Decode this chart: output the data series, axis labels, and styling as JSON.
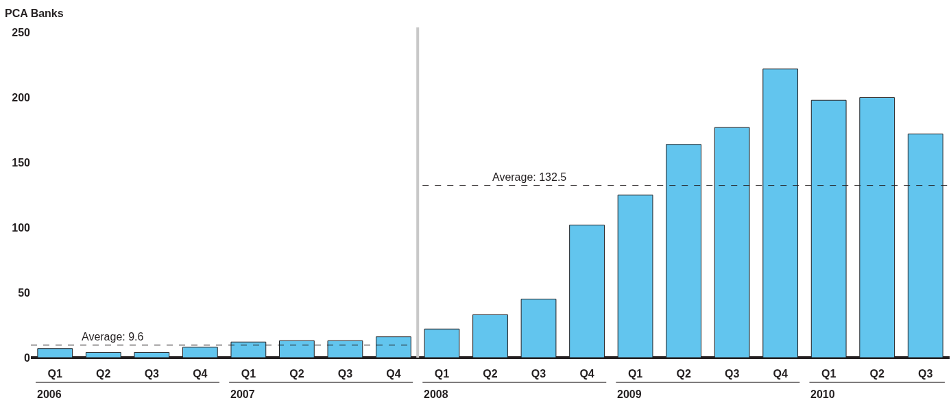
{
  "chart_data": {
    "type": "bar",
    "ylabel": "PCA Banks",
    "categories": [
      "Q1",
      "Q2",
      "Q3",
      "Q4",
      "Q1",
      "Q2",
      "Q3",
      "Q4",
      "Q1",
      "Q2",
      "Q3",
      "Q4",
      "Q1",
      "Q2",
      "Q3",
      "Q4",
      "Q1",
      "Q2",
      "Q3"
    ],
    "values": [
      7,
      4,
      4,
      8,
      12,
      13,
      13,
      16,
      22,
      33,
      45,
      102,
      125,
      164,
      177,
      222,
      198,
      200,
      172
    ],
    "color": "#62c5ee",
    "ylim": [
      0,
      254
    ],
    "yticks": [
      0,
      50,
      100,
      150,
      200,
      250
    ],
    "ref_lines": [
      {
        "axis": "y",
        "value": 9.6,
        "label": "Average: 9.6",
        "color": "#231f20",
        "line_style": "dashed"
      },
      {
        "axis": "y",
        "value": 132.5,
        "label": "Average: 132.5",
        "color": "#231f20",
        "line_style": "dashed"
      }
    ],
    "annotations": [
      "2006",
      "2007",
      "2008",
      "2009",
      "2010"
    ]
  }
}
